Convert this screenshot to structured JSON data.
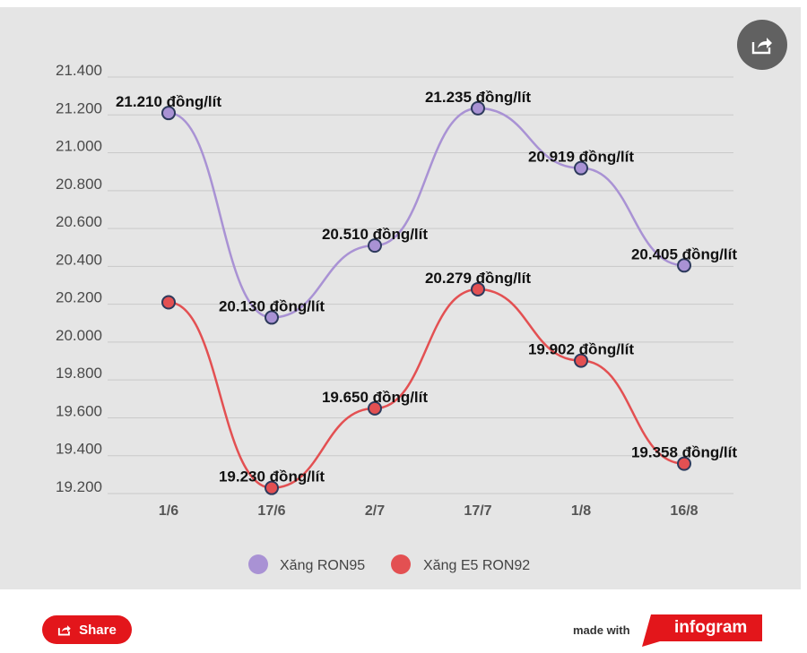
{
  "chart_data": {
    "type": "line",
    "categories": [
      "1/6",
      "17/6",
      "2/7",
      "17/7",
      "1/8",
      "16/8"
    ],
    "y_ticks": [
      "21.400",
      "21.200",
      "21.000",
      "20.800",
      "20.600",
      "20.400",
      "20.200",
      "20.000",
      "19.800",
      "19.600",
      "19.400",
      "19.200"
    ],
    "ylim": [
      19200,
      21400
    ],
    "grid": true,
    "legend_position": "bottom",
    "series": [
      {
        "name": "Xăng RON95",
        "color": "#a992d4",
        "values": [
          21210,
          20130,
          20510,
          21235,
          20919,
          20405
        ],
        "labels": [
          "21.210 đồng/lít",
          "20.130 đồng/lít",
          "20.510 đồng/lít",
          "21.235 đồng/lít",
          "20.919 đồng/lít",
          "20.405 đồng/lít"
        ]
      },
      {
        "name": "Xăng E5 RON92",
        "color": "#e35052",
        "values": [
          20210,
          19230,
          19650,
          20279,
          19902,
          19358
        ],
        "labels": [
          "",
          "19.230 đồng/lít",
          "19.650 đồng/lít",
          "20.279 đồng/lít",
          "19.902 đồng/lít",
          "19.358 đồng/lít"
        ]
      }
    ]
  },
  "footer": {
    "share_label": "Share",
    "made_with": "made with",
    "brand": "infogram",
    "brand_color": "#e3161b"
  }
}
